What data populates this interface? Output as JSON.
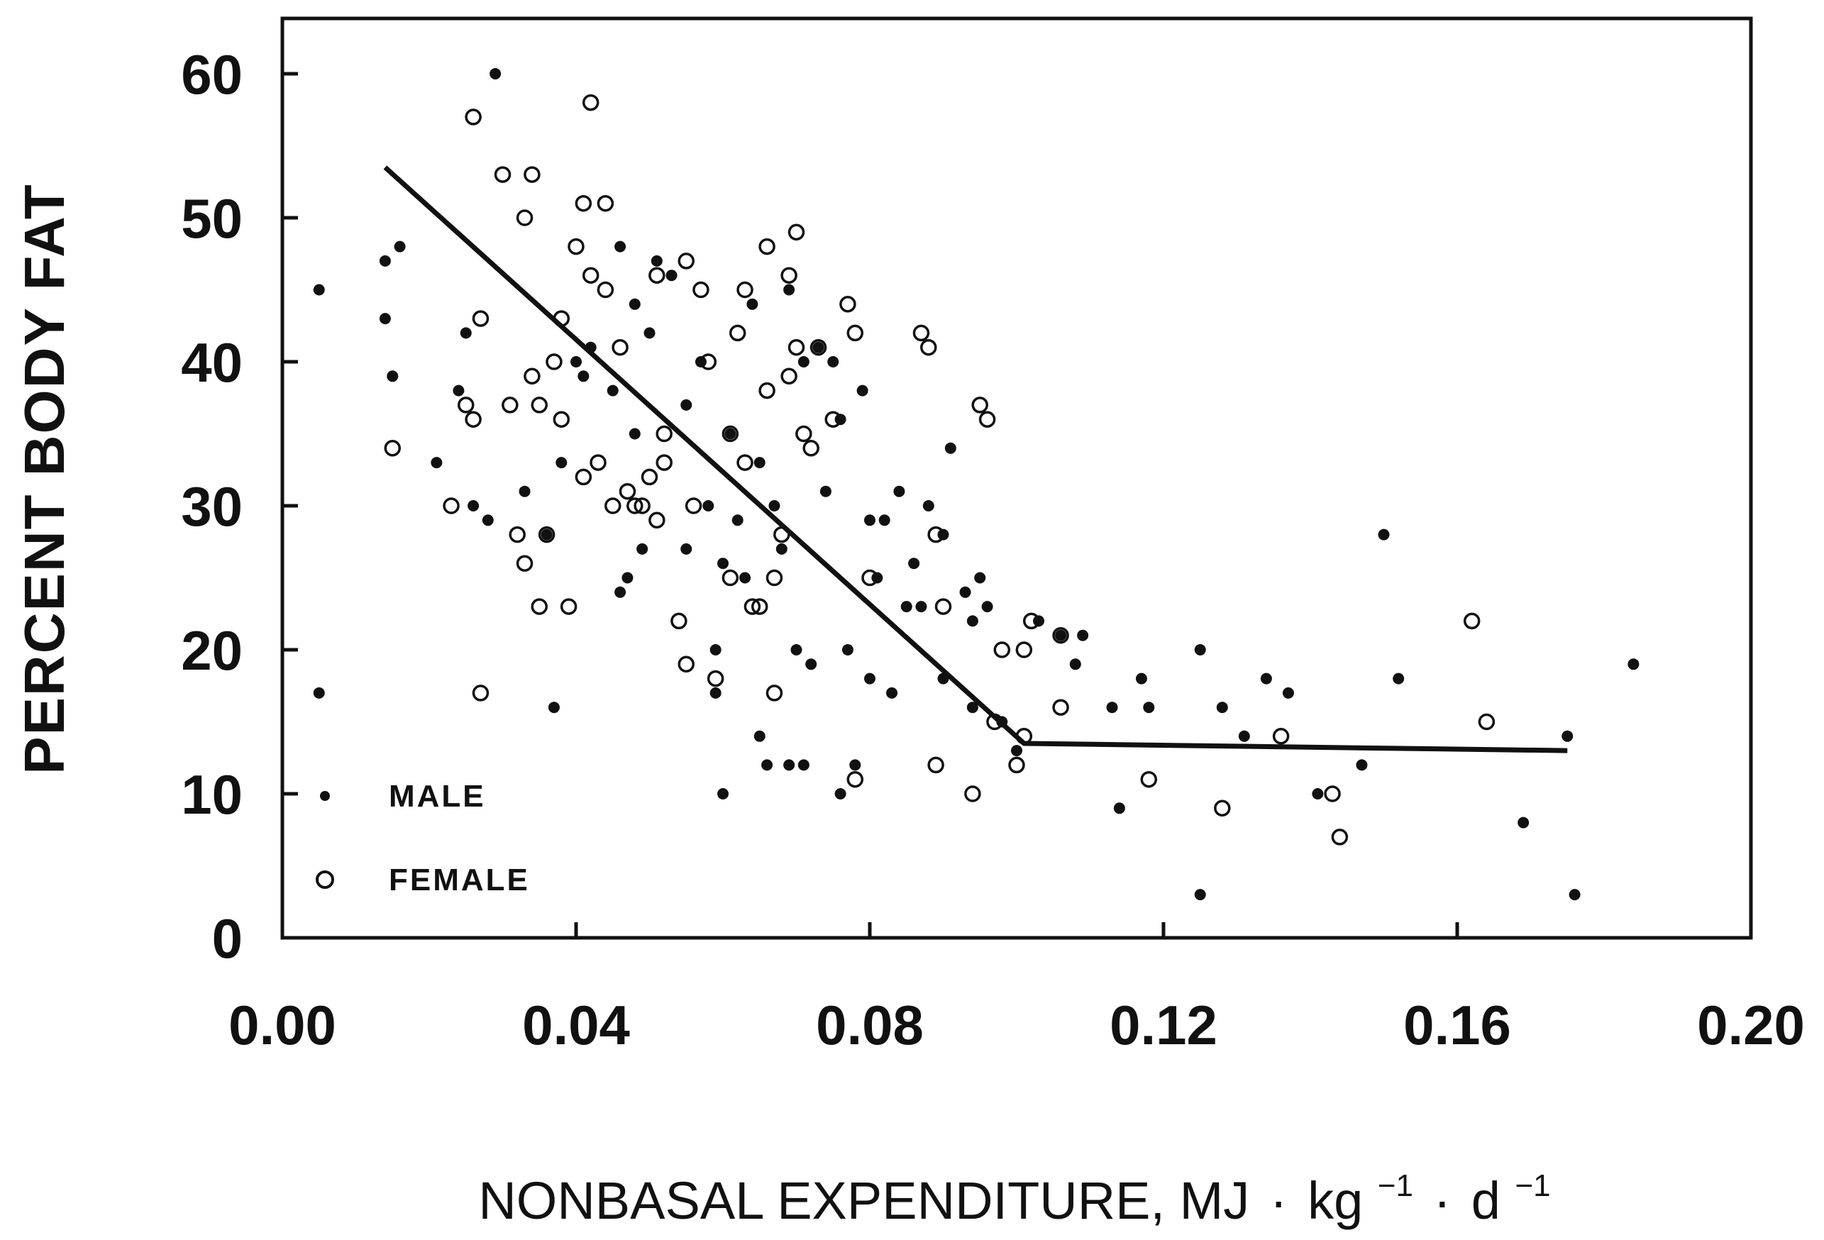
{
  "chart_data": {
    "type": "scatter",
    "title": "",
    "ylabel": "PERCENT BODY FAT",
    "xlabel": {
      "main": "NONBASAL EXPENDITURE, MJ",
      "dot1": "·",
      "kg": "kg",
      "sup1": "−1",
      "dot2": "·",
      "d": "d",
      "sup2": "−1"
    },
    "xlim": [
      0.0,
      0.2
    ],
    "ylim": [
      0,
      65
    ],
    "x_ticks": [
      {
        "value": 0.0,
        "label": "0.00"
      },
      {
        "value": 0.04,
        "label": "0.04"
      },
      {
        "value": 0.08,
        "label": "0.08"
      },
      {
        "value": 0.12,
        "label": "0.12"
      },
      {
        "value": 0.16,
        "label": "0.16"
      },
      {
        "value": 0.2,
        "label": "0.20"
      }
    ],
    "y_ticks": [
      {
        "value": 0,
        "label": "0"
      },
      {
        "value": 10,
        "label": "10"
      },
      {
        "value": 20,
        "label": "20"
      },
      {
        "value": 30,
        "label": "30"
      },
      {
        "value": 40,
        "label": "40"
      },
      {
        "value": 50,
        "label": "50"
      },
      {
        "value": 60,
        "label": "60"
      }
    ],
    "legend": [
      {
        "name": "MALE",
        "marker": "filled-dot"
      },
      {
        "name": "FEMALE",
        "marker": "open-circle"
      }
    ],
    "legend_position": "bottom-left",
    "series": [
      {
        "name": "MALE",
        "marker": "filled-dot",
        "points": [
          [
            0.005,
            45
          ],
          [
            0.005,
            17
          ],
          [
            0.014,
            47
          ],
          [
            0.014,
            43
          ],
          [
            0.015,
            39
          ],
          [
            0.016,
            48
          ],
          [
            0.021,
            33
          ],
          [
            0.024,
            38
          ],
          [
            0.025,
            42
          ],
          [
            0.026,
            30
          ],
          [
            0.028,
            29
          ],
          [
            0.029,
            60
          ],
          [
            0.033,
            31
          ],
          [
            0.036,
            28
          ],
          [
            0.037,
            16
          ],
          [
            0.038,
            33
          ],
          [
            0.04,
            40
          ],
          [
            0.041,
            39
          ],
          [
            0.042,
            41
          ],
          [
            0.045,
            38
          ],
          [
            0.046,
            48
          ],
          [
            0.046,
            24
          ],
          [
            0.047,
            25
          ],
          [
            0.048,
            44
          ],
          [
            0.048,
            35
          ],
          [
            0.049,
            27
          ],
          [
            0.05,
            42
          ],
          [
            0.051,
            47
          ],
          [
            0.053,
            46
          ],
          [
            0.055,
            37
          ],
          [
            0.055,
            27
          ],
          [
            0.057,
            40
          ],
          [
            0.058,
            30
          ],
          [
            0.059,
            17
          ],
          [
            0.059,
            20
          ],
          [
            0.06,
            10
          ],
          [
            0.06,
            26
          ],
          [
            0.061,
            35
          ],
          [
            0.062,
            29
          ],
          [
            0.063,
            25
          ],
          [
            0.064,
            44
          ],
          [
            0.065,
            33
          ],
          [
            0.065,
            14
          ],
          [
            0.066,
            12
          ],
          [
            0.067,
            30
          ],
          [
            0.068,
            27
          ],
          [
            0.069,
            45
          ],
          [
            0.069,
            12
          ],
          [
            0.07,
            20
          ],
          [
            0.071,
            40
          ],
          [
            0.071,
            12
          ],
          [
            0.072,
            19
          ],
          [
            0.073,
            41
          ],
          [
            0.074,
            31
          ],
          [
            0.075,
            40
          ],
          [
            0.076,
            36
          ],
          [
            0.076,
            10
          ],
          [
            0.077,
            20
          ],
          [
            0.078,
            12
          ],
          [
            0.079,
            38
          ],
          [
            0.08,
            29
          ],
          [
            0.08,
            18
          ],
          [
            0.081,
            25
          ],
          [
            0.082,
            29
          ],
          [
            0.083,
            17
          ],
          [
            0.084,
            31
          ],
          [
            0.085,
            23
          ],
          [
            0.086,
            26
          ],
          [
            0.087,
            23
          ],
          [
            0.088,
            30
          ],
          [
            0.09,
            28
          ],
          [
            0.09,
            18
          ],
          [
            0.091,
            34
          ],
          [
            0.093,
            24
          ],
          [
            0.094,
            22
          ],
          [
            0.094,
            16
          ],
          [
            0.095,
            25
          ],
          [
            0.096,
            23
          ],
          [
            0.098,
            15
          ],
          [
            0.1,
            13
          ],
          [
            0.103,
            22
          ],
          [
            0.106,
            21
          ],
          [
            0.108,
            19
          ],
          [
            0.109,
            21
          ],
          [
            0.113,
            16
          ],
          [
            0.114,
            9
          ],
          [
            0.117,
            18
          ],
          [
            0.118,
            16
          ],
          [
            0.125,
            20
          ],
          [
            0.125,
            3
          ],
          [
            0.128,
            16
          ],
          [
            0.131,
            14
          ],
          [
            0.134,
            18
          ],
          [
            0.137,
            17
          ],
          [
            0.141,
            10
          ],
          [
            0.147,
            12
          ],
          [
            0.15,
            28
          ],
          [
            0.152,
            18
          ],
          [
            0.169,
            8
          ],
          [
            0.175,
            14
          ],
          [
            0.176,
            3
          ],
          [
            0.184,
            19
          ]
        ]
      },
      {
        "name": "FEMALE",
        "marker": "open-circle",
        "points": [
          [
            0.015,
            34
          ],
          [
            0.023,
            30
          ],
          [
            0.025,
            37
          ],
          [
            0.026,
            36
          ],
          [
            0.027,
            43
          ],
          [
            0.027,
            17
          ],
          [
            0.026,
            57
          ],
          [
            0.03,
            53
          ],
          [
            0.031,
            37
          ],
          [
            0.032,
            28
          ],
          [
            0.033,
            50
          ],
          [
            0.033,
            26
          ],
          [
            0.034,
            53
          ],
          [
            0.034,
            39
          ],
          [
            0.035,
            37
          ],
          [
            0.035,
            23
          ],
          [
            0.036,
            28
          ],
          [
            0.037,
            40
          ],
          [
            0.038,
            43
          ],
          [
            0.038,
            36
          ],
          [
            0.039,
            23
          ],
          [
            0.04,
            48
          ],
          [
            0.041,
            51
          ],
          [
            0.041,
            32
          ],
          [
            0.042,
            46
          ],
          [
            0.042,
            58
          ],
          [
            0.043,
            33
          ],
          [
            0.044,
            51
          ],
          [
            0.044,
            45
          ],
          [
            0.045,
            30
          ],
          [
            0.046,
            41
          ],
          [
            0.047,
            31
          ],
          [
            0.048,
            30
          ],
          [
            0.049,
            30
          ],
          [
            0.05,
            32
          ],
          [
            0.051,
            29
          ],
          [
            0.051,
            46
          ],
          [
            0.052,
            35
          ],
          [
            0.052,
            33
          ],
          [
            0.054,
            22
          ],
          [
            0.055,
            19
          ],
          [
            0.055,
            47
          ],
          [
            0.056,
            30
          ],
          [
            0.057,
            45
          ],
          [
            0.058,
            40
          ],
          [
            0.059,
            18
          ],
          [
            0.061,
            25
          ],
          [
            0.061,
            35
          ],
          [
            0.062,
            42
          ],
          [
            0.063,
            45
          ],
          [
            0.063,
            33
          ],
          [
            0.064,
            23
          ],
          [
            0.065,
            23
          ],
          [
            0.066,
            48
          ],
          [
            0.066,
            38
          ],
          [
            0.067,
            17
          ],
          [
            0.067,
            25
          ],
          [
            0.068,
            28
          ],
          [
            0.069,
            39
          ],
          [
            0.069,
            46
          ],
          [
            0.07,
            49
          ],
          [
            0.07,
            41
          ],
          [
            0.071,
            35
          ],
          [
            0.072,
            34
          ],
          [
            0.073,
            41
          ],
          [
            0.075,
            36
          ],
          [
            0.077,
            44
          ],
          [
            0.078,
            42
          ],
          [
            0.078,
            11
          ],
          [
            0.08,
            25
          ],
          [
            0.087,
            42
          ],
          [
            0.088,
            41
          ],
          [
            0.089,
            28
          ],
          [
            0.089,
            12
          ],
          [
            0.09,
            23
          ],
          [
            0.094,
            10
          ],
          [
            0.095,
            37
          ],
          [
            0.096,
            36
          ],
          [
            0.097,
            15
          ],
          [
            0.098,
            20
          ],
          [
            0.1,
            12
          ],
          [
            0.101,
            14
          ],
          [
            0.101,
            20
          ],
          [
            0.102,
            22
          ],
          [
            0.106,
            16
          ],
          [
            0.106,
            21
          ],
          [
            0.118,
            11
          ],
          [
            0.128,
            9
          ],
          [
            0.136,
            14
          ],
          [
            0.143,
            10
          ],
          [
            0.144,
            7
          ],
          [
            0.162,
            22
          ],
          [
            0.164,
            15
          ]
        ]
      }
    ],
    "fit_line": {
      "name": "piecewise linear fit",
      "points": [
        [
          0.014,
          53.5
        ],
        [
          0.101,
          13.5
        ],
        [
          0.175,
          13
        ]
      ]
    }
  }
}
